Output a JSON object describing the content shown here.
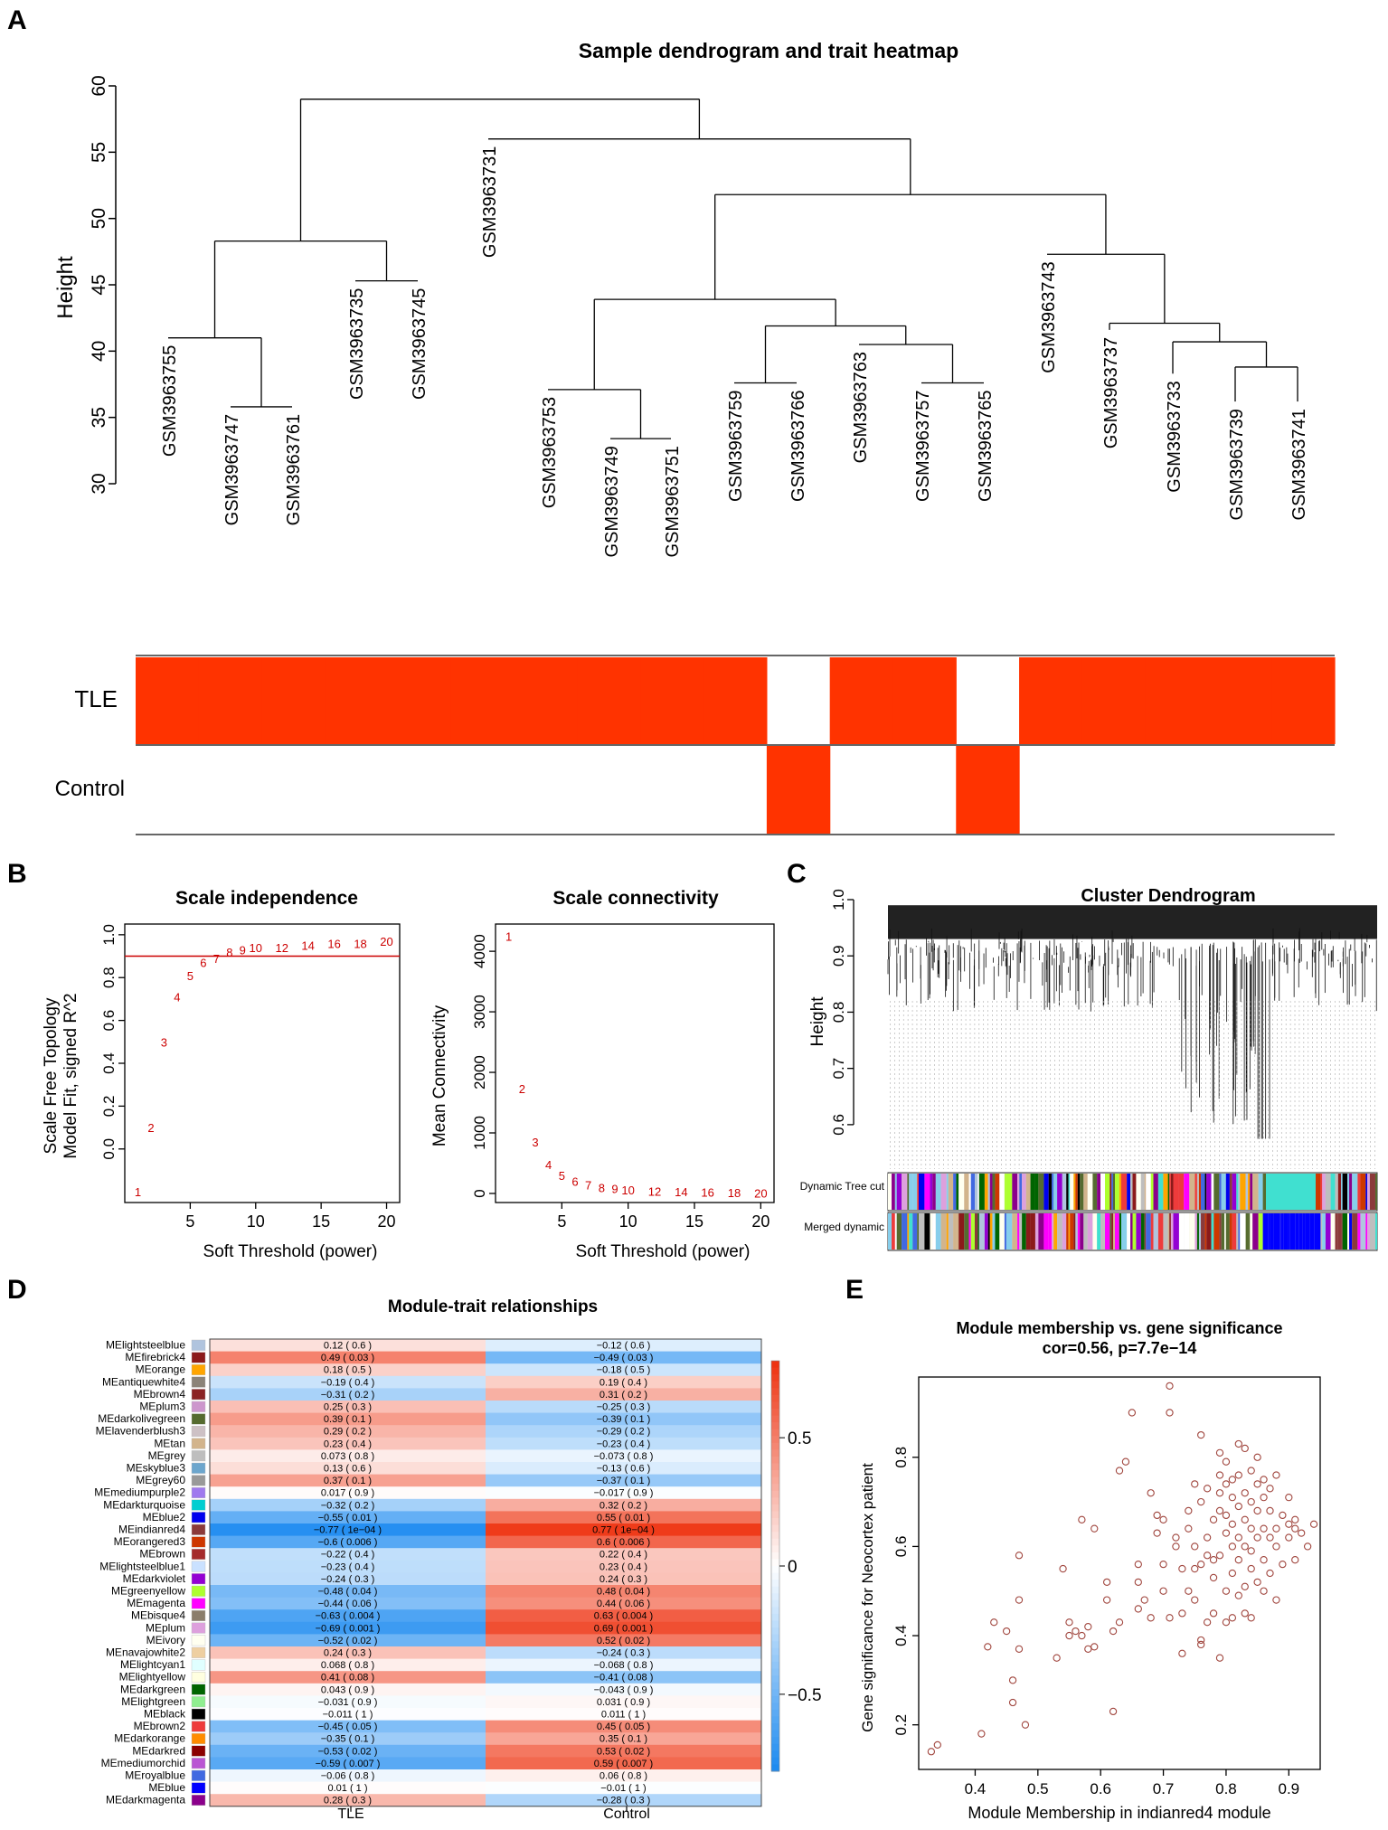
{
  "panel_letters": [
    "A",
    "B",
    "C",
    "D",
    "E"
  ],
  "chart_data": [
    {
      "id": "A",
      "type": "dendrogram",
      "title": "Sample dendrogram and trait heatmap",
      "ylabel": "Height",
      "yticks": [
        "60",
        "55",
        "50",
        "45",
        "40",
        "35",
        "30"
      ],
      "ylim": [
        30,
        60
      ],
      "samples": [
        "GSM3963755",
        "GSM3963747",
        "GSM3963761",
        "GSM3963735",
        "GSM3963745",
        "GSM3963731",
        "GSM3963753",
        "GSM3963749",
        "GSM3963751",
        "GSM3963759",
        "GSM3963766",
        "GSM3963763",
        "GSM3963757",
        "GSM3963765",
        "GSM3963743",
        "GSM3963737",
        "GSM3963733",
        "GSM3963739",
        "GSM3963741"
      ],
      "traits": [
        "TLE",
        "Control"
      ],
      "trait_values": {
        "TLE": [
          1,
          1,
          1,
          1,
          1,
          1,
          1,
          1,
          1,
          1,
          0,
          1,
          1,
          0,
          1,
          1,
          1,
          1,
          1
        ],
        "Control": [
          0,
          0,
          0,
          0,
          0,
          0,
          0,
          0,
          0,
          0,
          1,
          0,
          0,
          1,
          0,
          0,
          0,
          0,
          0
        ]
      },
      "trait_color": "#ff3300"
    },
    {
      "id": "B1",
      "type": "scatter",
      "title": "Scale independence",
      "xlabel": "Soft Threshold (power)",
      "ylabel_lines": [
        "Scale Free Topology",
        "Model Fit, signed R^2"
      ],
      "xlim": [
        0,
        21
      ],
      "ylim": [
        -0.25,
        1.05
      ],
      "xticks": [
        "5",
        "10",
        "15",
        "20"
      ],
      "yticks": [
        "0.0",
        "0.2",
        "0.4",
        "0.6",
        "0.8",
        "1.0"
      ],
      "powers": [
        1,
        2,
        3,
        4,
        5,
        6,
        7,
        8,
        9,
        10,
        12,
        14,
        16,
        18,
        20
      ],
      "values": [
        -0.2,
        0.1,
        0.5,
        0.71,
        0.81,
        0.87,
        0.89,
        0.92,
        0.93,
        0.94,
        0.94,
        0.95,
        0.96,
        0.96,
        0.97
      ],
      "h_line": 0.9,
      "marker_color": "#cc0000"
    },
    {
      "id": "B2",
      "type": "scatter",
      "title": "Scale connectivity",
      "xlabel": "Soft Threshold (power)",
      "ylabel": "Mean Connectivity",
      "xlim": [
        0,
        21
      ],
      "ylim": [
        -150,
        4450
      ],
      "xticks": [
        "5",
        "10",
        "15",
        "20"
      ],
      "yticks": [
        "0",
        "1000",
        "2000",
        "3000",
        "4000"
      ],
      "powers": [
        1,
        2,
        3,
        4,
        5,
        6,
        7,
        8,
        9,
        10,
        12,
        14,
        16,
        18,
        20
      ],
      "values": [
        4250,
        1730,
        850,
        480,
        300,
        200,
        140,
        100,
        80,
        60,
        40,
        30,
        20,
        15,
        10
      ],
      "marker_color": "#cc0000"
    },
    {
      "id": "C",
      "type": "dendrogram",
      "title": "Cluster Dendrogram",
      "ylabel": "Height",
      "yticks": [
        "1.0",
        "0.9",
        "0.8",
        "0.7",
        "0.6"
      ],
      "ylim": [
        0.55,
        1.0
      ],
      "color_bar_labels": [
        "Dynamic Tree cut",
        "Merged dynamic"
      ]
    },
    {
      "id": "D",
      "type": "heatmap",
      "title": "Module-trait relationships",
      "columns": [
        "TLE",
        "Control"
      ],
      "rows": [
        {
          "name": "MElightsteelblue",
          "color": "#b0c4de",
          "tle": 0.12,
          "tle_label": "0.12 ( 0.6 )",
          "ctl": -0.12,
          "ctl_label": "−0.12 ( 0.6 )"
        },
        {
          "name": "MEfirebrick4",
          "color": "#8b1a1a",
          "tle": 0.49,
          "tle_label": "0.49 ( 0.03 )",
          "ctl": -0.49,
          "ctl_label": "−0.49 ( 0.03 )"
        },
        {
          "name": "MEorange",
          "color": "#ffa500",
          "tle": 0.18,
          "tle_label": "0.18 ( 0.5 )",
          "ctl": -0.18,
          "ctl_label": "−0.18 ( 0.5 )"
        },
        {
          "name": "MEantiquewhite4",
          "color": "#8b8378",
          "tle": -0.19,
          "tle_label": "−0.19 ( 0.4 )",
          "ctl": 0.19,
          "ctl_label": "0.19 ( 0.4 )"
        },
        {
          "name": "MEbrown4",
          "color": "#8b2323",
          "tle": -0.31,
          "tle_label": "−0.31 ( 0.2 )",
          "ctl": 0.31,
          "ctl_label": "0.31 ( 0.2 )"
        },
        {
          "name": "MEplum3",
          "color": "#cd96cd",
          "tle": 0.25,
          "tle_label": "0.25 ( 0.3 )",
          "ctl": -0.25,
          "ctl_label": "−0.25 ( 0.3 )"
        },
        {
          "name": "MEdarkolivegreen",
          "color": "#556b2f",
          "tle": 0.39,
          "tle_label": "0.39 ( 0.1 )",
          "ctl": -0.39,
          "ctl_label": "−0.39 ( 0.1 )"
        },
        {
          "name": "MElavenderblush3",
          "color": "#cdc1c5",
          "tle": 0.29,
          "tle_label": "0.29 ( 0.2 )",
          "ctl": -0.29,
          "ctl_label": "−0.29 ( 0.2 )"
        },
        {
          "name": "MEtan",
          "color": "#d2b48c",
          "tle": 0.23,
          "tle_label": "0.23 ( 0.4 )",
          "ctl": -0.23,
          "ctl_label": "−0.23 ( 0.4 )"
        },
        {
          "name": "MEgrey",
          "color": "#bebebe",
          "tle": 0.073,
          "tle_label": "0.073 ( 0.8 )",
          "ctl": -0.073,
          "ctl_label": "−0.073 ( 0.8 )"
        },
        {
          "name": "MEskyblue3",
          "color": "#6ca6cd",
          "tle": 0.13,
          "tle_label": "0.13 ( 0.6 )",
          "ctl": -0.13,
          "ctl_label": "−0.13 ( 0.6 )"
        },
        {
          "name": "MEgrey60",
          "color": "#999999",
          "tle": 0.37,
          "tle_label": "0.37 ( 0.1 )",
          "ctl": -0.37,
          "ctl_label": "−0.37 ( 0.1 )"
        },
        {
          "name": "MEmediumpurple2",
          "color": "#9f79ee",
          "tle": 0.017,
          "tle_label": "0.017 ( 0.9 )",
          "ctl": -0.017,
          "ctl_label": "−0.017 ( 0.9 )"
        },
        {
          "name": "MEdarkturquoise",
          "color": "#00ced1",
          "tle": -0.32,
          "tle_label": "−0.32 ( 0.2 )",
          "ctl": 0.32,
          "ctl_label": "0.32 ( 0.2 )"
        },
        {
          "name": "MEblue2",
          "color": "#0000ee",
          "tle": -0.55,
          "tle_label": "−0.55 ( 0.01 )",
          "ctl": 0.55,
          "ctl_label": "0.55 ( 0.01 )"
        },
        {
          "name": "MEindianred4",
          "color": "#8b3a3a",
          "tle": -0.77,
          "tle_label": "−0.77 ( 1e−04 )",
          "ctl": 0.77,
          "ctl_label": "0.77 ( 1e−04 )"
        },
        {
          "name": "MEorangered3",
          "color": "#cd3700",
          "tle": -0.6,
          "tle_label": "−0.6 ( 0.006 )",
          "ctl": 0.6,
          "ctl_label": "0.6 ( 0.006 )"
        },
        {
          "name": "MEbrown",
          "color": "#a52a2a",
          "tle": -0.22,
          "tle_label": "−0.22 ( 0.4 )",
          "ctl": 0.22,
          "ctl_label": "0.22 ( 0.4 )"
        },
        {
          "name": "MElightsteelblue1",
          "color": "#cae1ff",
          "tle": -0.23,
          "tle_label": "−0.23 ( 0.4 )",
          "ctl": 0.23,
          "ctl_label": "0.23 ( 0.4 )"
        },
        {
          "name": "MEdarkviolet",
          "color": "#9400d3",
          "tle": -0.24,
          "tle_label": "−0.24 ( 0.3 )",
          "ctl": 0.24,
          "ctl_label": "0.24 ( 0.3 )"
        },
        {
          "name": "MEgreenyellow",
          "color": "#adff2f",
          "tle": -0.48,
          "tle_label": "−0.48 ( 0.04 )",
          "ctl": 0.48,
          "ctl_label": "0.48 ( 0.04 )"
        },
        {
          "name": "MEmagenta",
          "color": "#ff00ff",
          "tle": -0.44,
          "tle_label": "−0.44 ( 0.06 )",
          "ctl": 0.44,
          "ctl_label": "0.44 ( 0.06 )"
        },
        {
          "name": "MEbisque4",
          "color": "#8b7d6b",
          "tle": -0.63,
          "tle_label": "−0.63 ( 0.004 )",
          "ctl": 0.63,
          "ctl_label": "0.63 ( 0.004 )"
        },
        {
          "name": "MEplum",
          "color": "#dda0dd",
          "tle": -0.69,
          "tle_label": "−0.69 ( 0.001 )",
          "ctl": 0.69,
          "ctl_label": "0.69 ( 0.001 )"
        },
        {
          "name": "MEivory",
          "color": "#fffff0",
          "tle": -0.52,
          "tle_label": "−0.52 ( 0.02 )",
          "ctl": 0.52,
          "ctl_label": "0.52 ( 0.02 )"
        },
        {
          "name": "MEnavajowhite2",
          "color": "#eecfa1",
          "tle": 0.24,
          "tle_label": "0.24 ( 0.3 )",
          "ctl": -0.24,
          "ctl_label": "−0.24 ( 0.3 )"
        },
        {
          "name": "MElightcyan1",
          "color": "#e0ffff",
          "tle": 0.068,
          "tle_label": "0.068 ( 0.8 )",
          "ctl": -0.068,
          "ctl_label": "−0.068 ( 0.8 )"
        },
        {
          "name": "MElightyellow",
          "color": "#ffffe0",
          "tle": 0.41,
          "tle_label": "0.41 ( 0.08 )",
          "ctl": -0.41,
          "ctl_label": "−0.41 ( 0.08 )"
        },
        {
          "name": "MEdarkgreen",
          "color": "#006400",
          "tle": 0.043,
          "tle_label": "0.043 ( 0.9 )",
          "ctl": -0.043,
          "ctl_label": "−0.043 ( 0.9 )"
        },
        {
          "name": "MElightgreen",
          "color": "#90ee90",
          "tle": -0.031,
          "tle_label": "−0.031 ( 0.9 )",
          "ctl": 0.031,
          "ctl_label": "0.031 ( 0.9 )"
        },
        {
          "name": "MEblack",
          "color": "#000000",
          "tle": -0.011,
          "tle_label": "−0.011 ( 1 )",
          "ctl": 0.011,
          "ctl_label": "0.011 ( 1 )"
        },
        {
          "name": "MEbrown2",
          "color": "#ee3b3b",
          "tle": -0.45,
          "tle_label": "−0.45 ( 0.05 )",
          "ctl": 0.45,
          "ctl_label": "0.45 ( 0.05 )"
        },
        {
          "name": "MEdarkorange",
          "color": "#ff8c00",
          "tle": -0.35,
          "tle_label": "−0.35 ( 0.1 )",
          "ctl": 0.35,
          "ctl_label": "0.35 ( 0.1 )"
        },
        {
          "name": "MEdarkred",
          "color": "#8b0000",
          "tle": -0.53,
          "tle_label": "−0.53 ( 0.02 )",
          "ctl": 0.53,
          "ctl_label": "0.53 ( 0.02 )"
        },
        {
          "name": "MEmediumorchid",
          "color": "#ba55d3",
          "tle": -0.59,
          "tle_label": "−0.59 ( 0.007 )",
          "ctl": 0.59,
          "ctl_label": "0.59 ( 0.007 )"
        },
        {
          "name": "MEroyalblue",
          "color": "#4169e1",
          "tle": -0.06,
          "tle_label": "−0.06 ( 0.8 )",
          "ctl": 0.06,
          "ctl_label": "0.06 ( 0.8 )"
        },
        {
          "name": "MEblue",
          "color": "#0000ff",
          "tle": 0.01,
          "tle_label": "0.01 ( 1 )",
          "ctl": -0.01,
          "ctl_label": "−0.01 ( 1 )"
        },
        {
          "name": "MEdarkmagenta",
          "color": "#8b008b",
          "tle": 0.28,
          "tle_label": "0.28 ( 0.3 )",
          "ctl": -0.28,
          "ctl_label": "−0.28 ( 0.3 )"
        }
      ],
      "colorbar_ticks": [
        "0.5",
        "0",
        "−0.5"
      ],
      "colorbar_range": [
        -0.8,
        0.8
      ],
      "colors": {
        "neg": "#1e8bf0",
        "mid": "#ffffff",
        "pos": "#ee3311"
      }
    },
    {
      "id": "E",
      "type": "scatter",
      "title": "Module membership vs. gene significance",
      "subtitle": "cor=0.56, p=7.7e−14",
      "xlabel": "Module Membership in indianred4 module",
      "ylabel": "Gene significance for Neocortex patient",
      "xlim": [
        0.31,
        0.95
      ],
      "ylim": [
        0.1,
        0.98
      ],
      "xticks": [
        "0.4",
        "0.5",
        "0.6",
        "0.7",
        "0.8",
        "0.9"
      ],
      "yticks": [
        "0.2",
        "0.4",
        "0.6",
        "0.8"
      ],
      "marker_color": "#a0453d",
      "points": [
        [
          0.33,
          0.14
        ],
        [
          0.34,
          0.155
        ],
        [
          0.41,
          0.18
        ],
        [
          0.42,
          0.375
        ],
        [
          0.43,
          0.43
        ],
        [
          0.45,
          0.41
        ],
        [
          0.46,
          0.25
        ],
        [
          0.46,
          0.3
        ],
        [
          0.47,
          0.48
        ],
        [
          0.47,
          0.37
        ],
        [
          0.47,
          0.58
        ],
        [
          0.48,
          0.2
        ],
        [
          0.53,
          0.35
        ],
        [
          0.54,
          0.55
        ],
        [
          0.55,
          0.4
        ],
        [
          0.55,
          0.43
        ],
        [
          0.56,
          0.41
        ],
        [
          0.57,
          0.4
        ],
        [
          0.57,
          0.66
        ],
        [
          0.58,
          0.37
        ],
        [
          0.58,
          0.42
        ],
        [
          0.59,
          0.375
        ],
        [
          0.59,
          0.64
        ],
        [
          0.61,
          0.52
        ],
        [
          0.61,
          0.48
        ],
        [
          0.62,
          0.23
        ],
        [
          0.62,
          0.41
        ],
        [
          0.63,
          0.43
        ],
        [
          0.63,
          0.77
        ],
        [
          0.64,
          0.79
        ],
        [
          0.65,
          0.9
        ],
        [
          0.66,
          0.52
        ],
        [
          0.66,
          0.56
        ],
        [
          0.66,
          0.46
        ],
        [
          0.67,
          0.48
        ],
        [
          0.68,
          0.44
        ],
        [
          0.68,
          0.72
        ],
        [
          0.69,
          0.67
        ],
        [
          0.69,
          0.63
        ],
        [
          0.7,
          0.66
        ],
        [
          0.7,
          0.5
        ],
        [
          0.7,
          0.56
        ],
        [
          0.71,
          0.44
        ],
        [
          0.71,
          0.9
        ],
        [
          0.71,
          0.96
        ],
        [
          0.72,
          0.6
        ],
        [
          0.72,
          0.62
        ],
        [
          0.73,
          0.45
        ],
        [
          0.73,
          0.55
        ],
        [
          0.73,
          0.36
        ],
        [
          0.74,
          0.64
        ],
        [
          0.74,
          0.68
        ],
        [
          0.74,
          0.5
        ],
        [
          0.75,
          0.55
        ],
        [
          0.75,
          0.74
        ],
        [
          0.75,
          0.6
        ],
        [
          0.75,
          0.48
        ],
        [
          0.76,
          0.7
        ],
        [
          0.76,
          0.85
        ],
        [
          0.76,
          0.56
        ],
        [
          0.76,
          0.38
        ],
        [
          0.76,
          0.39
        ],
        [
          0.77,
          0.58
        ],
        [
          0.77,
          0.62
        ],
        [
          0.77,
          0.73
        ],
        [
          0.77,
          0.43
        ],
        [
          0.78,
          0.66
        ],
        [
          0.78,
          0.53
        ],
        [
          0.78,
          0.57
        ],
        [
          0.78,
          0.45
        ],
        [
          0.79,
          0.58
        ],
        [
          0.79,
          0.68
        ],
        [
          0.79,
          0.72
        ],
        [
          0.79,
          0.76
        ],
        [
          0.79,
          0.81
        ],
        [
          0.79,
          0.35
        ],
        [
          0.8,
          0.43
        ],
        [
          0.8,
          0.5
        ],
        [
          0.8,
          0.63
        ],
        [
          0.8,
          0.67
        ],
        [
          0.8,
          0.74
        ],
        [
          0.8,
          0.79
        ],
        [
          0.81,
          0.54
        ],
        [
          0.81,
          0.6
        ],
        [
          0.81,
          0.65
        ],
        [
          0.81,
          0.71
        ],
        [
          0.81,
          0.75
        ],
        [
          0.81,
          0.44
        ],
        [
          0.82,
          0.49
        ],
        [
          0.82,
          0.57
        ],
        [
          0.82,
          0.62
        ],
        [
          0.82,
          0.69
        ],
        [
          0.82,
          0.76
        ],
        [
          0.82,
          0.83
        ],
        [
          0.83,
          0.51
        ],
        [
          0.83,
          0.6
        ],
        [
          0.83,
          0.66
        ],
        [
          0.83,
          0.72
        ],
        [
          0.83,
          0.45
        ],
        [
          0.83,
          0.82
        ],
        [
          0.84,
          0.55
        ],
        [
          0.84,
          0.59
        ],
        [
          0.84,
          0.64
        ],
        [
          0.84,
          0.7
        ],
        [
          0.84,
          0.77
        ],
        [
          0.84,
          0.44
        ],
        [
          0.85,
          0.52
        ],
        [
          0.85,
          0.62
        ],
        [
          0.85,
          0.68
        ],
        [
          0.85,
          0.74
        ],
        [
          0.85,
          0.8
        ],
        [
          0.86,
          0.5
        ],
        [
          0.86,
          0.57
        ],
        [
          0.86,
          0.64
        ],
        [
          0.86,
          0.71
        ],
        [
          0.86,
          0.75
        ],
        [
          0.87,
          0.54
        ],
        [
          0.87,
          0.62
        ],
        [
          0.87,
          0.68
        ],
        [
          0.87,
          0.73
        ],
        [
          0.88,
          0.6
        ],
        [
          0.88,
          0.64
        ],
        [
          0.88,
          0.76
        ],
        [
          0.88,
          0.48
        ],
        [
          0.89,
          0.67
        ],
        [
          0.89,
          0.56
        ],
        [
          0.9,
          0.62
        ],
        [
          0.9,
          0.71
        ],
        [
          0.9,
          0.65
        ],
        [
          0.91,
          0.57
        ],
        [
          0.91,
          0.66
        ],
        [
          0.91,
          0.64
        ],
        [
          0.92,
          0.63
        ],
        [
          0.93,
          0.6
        ],
        [
          0.94,
          0.65
        ]
      ]
    }
  ]
}
